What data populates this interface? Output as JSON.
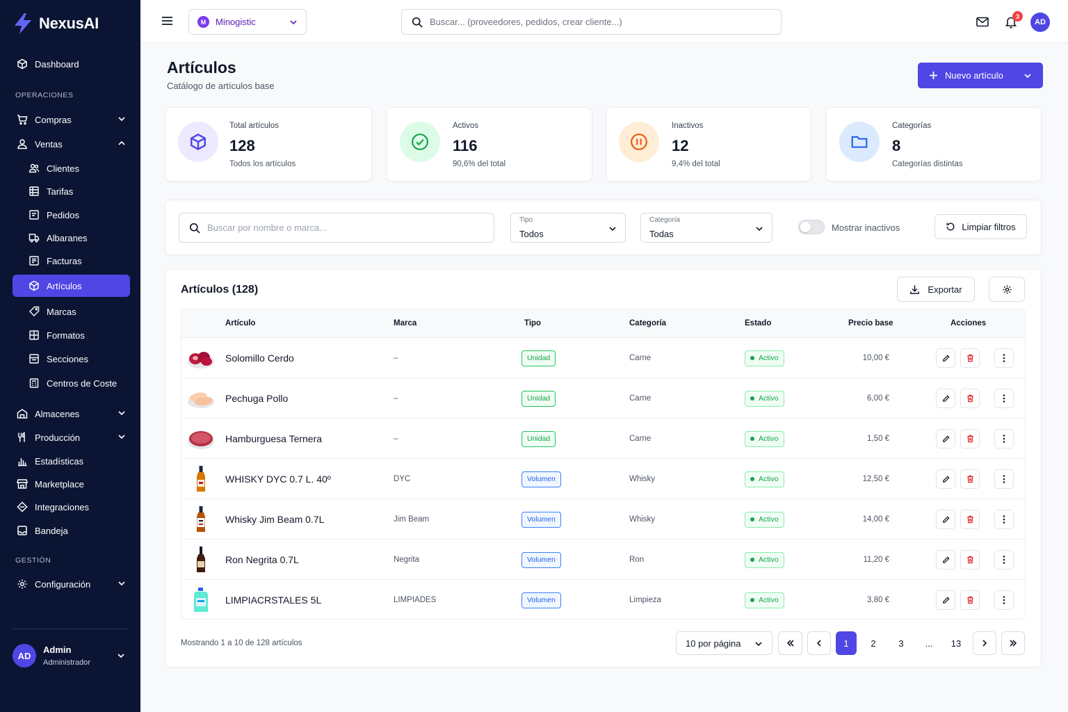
{
  "app": {
    "name": "NexusAI"
  },
  "sidebar": {
    "dashboard": "Dashboard",
    "section_ops": "OPERACIONES",
    "compras": "Compras",
    "ventas": "Ventas",
    "ventas_sub": [
      "Clientes",
      "Tarifas",
      "Pedidos",
      "Albaranes",
      "Facturas",
      "Artículos",
      "Marcas",
      "Formatos",
      "Secciones",
      "Centros de Coste"
    ],
    "almacenes": "Almacenes",
    "produccion": "Producción",
    "estadisticas": "Estadísticas",
    "marketplace": "Marketplace",
    "integraciones": "Integraciones",
    "bandeja": "Bandeja",
    "section_gest": "GESTIÓN",
    "configuracion": "Configuración",
    "active_item": "Artículos"
  },
  "user": {
    "initials": "AD",
    "name": "Admin",
    "role": "Administrador"
  },
  "topbar": {
    "org_initial": "M",
    "org_name": "Minogistic",
    "search_placeholder": "Buscar... (proveedores, pedidos, crear cliente...)",
    "notifications_count": "3",
    "avatar_initials": "AD"
  },
  "page": {
    "title": "Artículos",
    "subtitle": "Catálogo de artículos base",
    "new_button": "Nuevo artículo"
  },
  "stats": [
    {
      "label": "Total artículos",
      "value": "128",
      "note": "Todos los artículos",
      "icon": "cube-icon",
      "color": "#4f46e5"
    },
    {
      "label": "Activos",
      "value": "116",
      "note": "90,6% del total",
      "icon": "check-circle-icon",
      "color": "#16a34a"
    },
    {
      "label": "Inactivos",
      "value": "12",
      "note": "9,4% del total",
      "icon": "pause-circle-icon",
      "color": "#ea580c"
    },
    {
      "label": "Categorías",
      "value": "8",
      "note": "Categorías distintas",
      "icon": "folder-icon",
      "color": "#2563eb"
    }
  ],
  "filters": {
    "search_placeholder": "Buscar por nombre o marca...",
    "tipo_label": "Tipo",
    "tipo_value": "Todos",
    "categoria_label": "Categoría",
    "categoria_value": "Todas",
    "show_inactive": "Mostrar inactivos",
    "clear": "Limpiar filtros"
  },
  "table": {
    "title": "Artículos (128)",
    "export": "Exportar",
    "columns": [
      "Artículo",
      "Marca",
      "Tipo",
      "Categoría",
      "Estado",
      "Precio base",
      "Acciones"
    ],
    "rows": [
      {
        "name": "Solomillo Cerdo",
        "brand": "–",
        "type": "Unidad",
        "category": "Carne",
        "status": "Activo",
        "price": "10,00 €",
        "thumb": "meat"
      },
      {
        "name": "Pechuga Pollo",
        "brand": "–",
        "type": "Unidad",
        "category": "Carne",
        "status": "Activo",
        "price": "6,00 €",
        "thumb": "chicken"
      },
      {
        "name": "Hamburguesa Ternera",
        "brand": "–",
        "type": "Unidad",
        "category": "Carne",
        "status": "Activo",
        "price": "1,50 €",
        "thumb": "burger"
      },
      {
        "name": "WHISKY DYC 0.7 L. 40º",
        "brand": "DYC",
        "type": "Volumen",
        "category": "Whisky",
        "status": "Activo",
        "price": "12,50 €",
        "thumb": "bottle-amber"
      },
      {
        "name": "Whisky Jim Beam 0.7L",
        "brand": "Jim Beam",
        "type": "Volumen",
        "category": "Whisky",
        "status": "Activo",
        "price": "14,00 €",
        "thumb": "bottle-white"
      },
      {
        "name": "Ron Negrita 0.7L",
        "brand": "Negrita",
        "type": "Volumen",
        "category": "Ron",
        "status": "Activo",
        "price": "11,20 €",
        "thumb": "bottle-dark"
      },
      {
        "name": "LIMPIACRSTALES 5L",
        "brand": "LIMPIADES",
        "type": "Volumen",
        "category": "Limpieza",
        "status": "Activo",
        "price": "3,80 €",
        "thumb": "jug"
      }
    ]
  },
  "pagination": {
    "showing": "Mostrando 1 a 10 de 128 artículos",
    "per_page": "10 por página",
    "pages": [
      "1",
      "2",
      "3",
      "...",
      "13"
    ],
    "current": "1"
  }
}
